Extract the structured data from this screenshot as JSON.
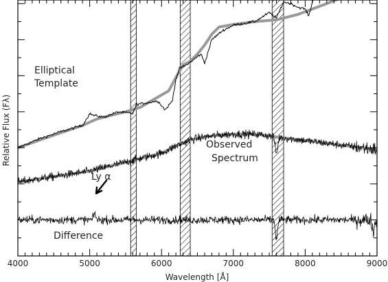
{
  "chart_data": {
    "type": "line",
    "xlabel": "Wavelength [Å]",
    "ylabel": "Relative Flux (Fλ)",
    "xlim": [
      4000,
      9000
    ],
    "x_ticks": [
      "4000",
      "5000",
      "6000",
      "7000",
      "8000",
      "9000"
    ],
    "grid": false,
    "y_tick_labels_shown": false,
    "hatched_bands": [
      {
        "from": 5570,
        "to": 5650
      },
      {
        "from": 6260,
        "to": 6400
      },
      {
        "from": 7540,
        "to": 7700
      }
    ],
    "annotations": [
      {
        "text": "Elliptical",
        "line": 1
      },
      {
        "text": "Template",
        "line": 2
      },
      {
        "text": "Observed",
        "line": 1
      },
      {
        "text": "Spectrum",
        "line": 2
      },
      {
        "text": "Ly α",
        "arrow_to_wavelength": 5070
      },
      {
        "text": "Difference",
        "line": 1
      }
    ],
    "series": [
      {
        "kind": "smooth-template",
        "color": "#999999",
        "x": [
          4000,
          4500,
          4900,
          5100,
          5300,
          5500,
          5700,
          5900,
          6100,
          6200,
          6300,
          6400,
          6500,
          6600,
          6700,
          6800,
          7000,
          7300,
          7600,
          7900,
          8100,
          8300,
          8400,
          8500
        ],
        "y": [
          3.0,
          3.35,
          3.62,
          3.8,
          3.9,
          4.0,
          4.12,
          4.35,
          4.58,
          4.95,
          5.3,
          5.4,
          5.6,
          5.85,
          6.15,
          6.35,
          6.42,
          6.5,
          6.55,
          6.7,
          6.85,
          7.0,
          7.08,
          7.15
        ]
      },
      {
        "kind": "elliptical-template-spectrum",
        "color": "#000000",
        "x": [
          4000,
          4300,
          4600,
          4900,
          5000,
          5050,
          5200,
          5400,
          5600,
          5650,
          5800,
          5950,
          6050,
          6150,
          6200,
          6250,
          6350,
          6450,
          6550,
          6600,
          6700,
          6850,
          7000,
          7300,
          7500,
          7600,
          7700,
          7800,
          7900,
          8000,
          8050,
          8100,
          8200,
          8300,
          8400,
          8500
        ],
        "y": [
          3.0,
          3.25,
          3.45,
          3.62,
          3.95,
          3.9,
          3.85,
          4.0,
          3.95,
          4.2,
          4.25,
          4.3,
          4.05,
          4.3,
          4.9,
          5.2,
          5.3,
          5.45,
          5.6,
          5.35,
          6.0,
          6.25,
          6.4,
          6.5,
          6.75,
          6.6,
          7.05,
          7.0,
          6.9,
          6.85,
          6.65,
          7.05,
          7.35,
          7.4,
          7.25,
          7.3
        ]
      },
      {
        "kind": "observed-spectrum-smooth",
        "color": "#999999",
        "x": [
          4000,
          4500,
          5000,
          5500,
          5800,
          6000,
          6200,
          6400,
          6600,
          6800,
          7000,
          7200,
          7400,
          7600,
          7800,
          8000,
          8200,
          8400,
          8600,
          8800,
          9000
        ],
        "y": [
          2.05,
          2.2,
          2.35,
          2.6,
          2.75,
          2.85,
          3.05,
          3.22,
          3.3,
          3.35,
          3.38,
          3.38,
          3.36,
          3.3,
          3.25,
          3.2,
          3.15,
          3.1,
          3.05,
          3.0,
          2.95
        ]
      },
      {
        "kind": "observed-spectrum-noisy",
        "color": "#000000",
        "noise_level": 0.08,
        "x_from": 4000,
        "x_to": 9000,
        "follows": "observed-spectrum-smooth",
        "absorption_dips": [
          {
            "x": 7600,
            "depth": 0.45
          }
        ]
      },
      {
        "kind": "difference",
        "color": "#000000",
        "noise_level": 0.08,
        "baseline": 1.0,
        "x_from": 4000,
        "x_to": 9000,
        "features": [
          {
            "x": 5070,
            "height": 0.18
          },
          {
            "x": 7600,
            "height": -0.55
          },
          {
            "x": 8950,
            "height": -0.35
          }
        ]
      }
    ],
    "ylim": [
      0,
      7.1
    ]
  }
}
